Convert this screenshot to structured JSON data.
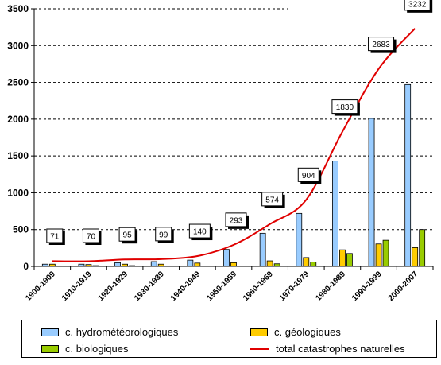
{
  "chart_data": {
    "type": "bar",
    "title": "",
    "xlabel": "",
    "ylabel": "",
    "ylim": [
      0,
      3500
    ],
    "yticks": [
      0,
      500,
      1000,
      1500,
      2000,
      2500,
      3000,
      3500
    ],
    "grid": "dashed horizontal",
    "legend_position": "bottom",
    "categories": [
      "1900-1909",
      "1910-1919",
      "1920-1929",
      "1930-1939",
      "1940-1949",
      "1950-1959",
      "1960-1969",
      "1970-1979",
      "1980-1989",
      "1990-1999",
      "2000-2007"
    ],
    "series": [
      {
        "name": "c. hydrométéorologiques",
        "type": "bar",
        "color": "#99ccff",
        "values": [
          30,
          30,
          50,
          65,
          85,
          230,
          450,
          720,
          1430,
          2010,
          2470
        ]
      },
      {
        "name": "c. géologiques",
        "type": "bar",
        "color": "#ffcc00",
        "values": [
          30,
          25,
          30,
          30,
          45,
          50,
          75,
          120,
          225,
          305,
          255
        ]
      },
      {
        "name": "c. biologiques",
        "type": "bar",
        "color": "#99cc00",
        "values": [
          5,
          10,
          10,
          5,
          5,
          5,
          35,
          60,
          175,
          355,
          500
        ]
      },
      {
        "name": "total catastrophes naturelles",
        "type": "line",
        "color": "#e00000",
        "values": [
          71,
          70,
          95,
          99,
          140,
          293,
          574,
          904,
          1830,
          2683,
          3232
        ],
        "labels": [
          "71",
          "70",
          "95",
          "99",
          "140",
          "293",
          "574",
          "904",
          "1830",
          "2683",
          "3232"
        ]
      }
    ]
  }
}
